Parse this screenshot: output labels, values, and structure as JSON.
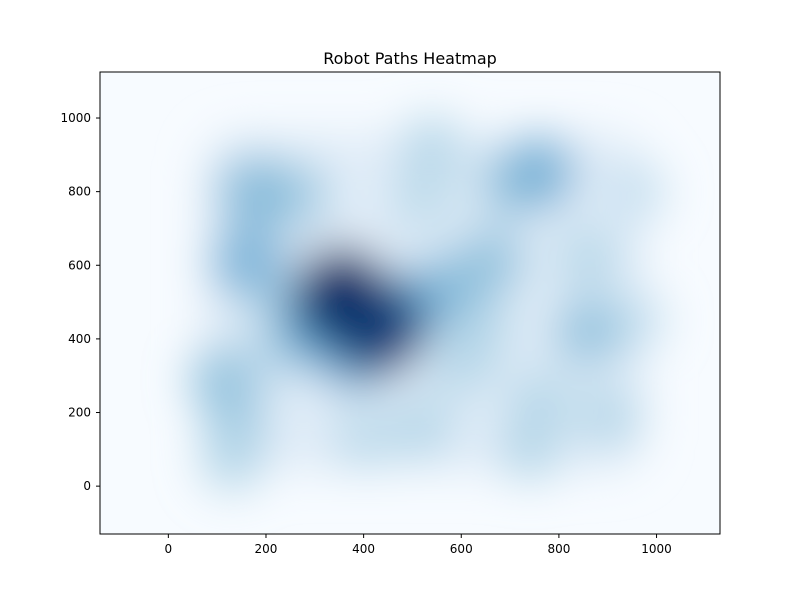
{
  "chart_data": {
    "type": "heatmap",
    "subtype": "kde-density",
    "title": "Robot Paths Heatmap",
    "xlabel": "",
    "ylabel": "",
    "xlim": [
      -140,
      1130
    ],
    "ylim": [
      -130,
      1125
    ],
    "xticks": [
      0,
      200,
      400,
      600,
      800,
      1000
    ],
    "yticks": [
      0,
      200,
      400,
      600,
      800,
      1000
    ],
    "colormap": "Blues",
    "colors": {
      "background": "#f7fbff",
      "low": "#deebf7",
      "mid": "#9ecae1",
      "high": "#4292c6",
      "peak": "#08306b",
      "axis": "#000000"
    },
    "density_hotspots": [
      {
        "x": 355,
        "y": 520,
        "intensity": 1.0
      },
      {
        "x": 430,
        "y": 425,
        "intensity": 0.95
      },
      {
        "x": 310,
        "y": 450,
        "intensity": 0.7
      },
      {
        "x": 470,
        "y": 470,
        "intensity": 0.65
      },
      {
        "x": 380,
        "y": 360,
        "intensity": 0.6
      },
      {
        "x": 560,
        "y": 530,
        "intensity": 0.5
      },
      {
        "x": 660,
        "y": 610,
        "intensity": 0.45
      },
      {
        "x": 165,
        "y": 610,
        "intensity": 0.55
      },
      {
        "x": 175,
        "y": 800,
        "intensity": 0.5
      },
      {
        "x": 260,
        "y": 790,
        "intensity": 0.4
      },
      {
        "x": 760,
        "y": 850,
        "intensity": 0.55
      },
      {
        "x": 700,
        "y": 820,
        "intensity": 0.4
      },
      {
        "x": 860,
        "y": 420,
        "intensity": 0.45
      },
      {
        "x": 115,
        "y": 290,
        "intensity": 0.45
      },
      {
        "x": 140,
        "y": 180,
        "intensity": 0.35
      },
      {
        "x": 130,
        "y": 70,
        "intensity": 0.3
      },
      {
        "x": 520,
        "y": 160,
        "intensity": 0.3
      },
      {
        "x": 400,
        "y": 130,
        "intensity": 0.25
      },
      {
        "x": 760,
        "y": 230,
        "intensity": 0.3
      },
      {
        "x": 740,
        "y": 100,
        "intensity": 0.3
      },
      {
        "x": 900,
        "y": 190,
        "intensity": 0.3
      },
      {
        "x": 540,
        "y": 920,
        "intensity": 0.3
      },
      {
        "x": 520,
        "y": 780,
        "intensity": 0.25
      },
      {
        "x": 860,
        "y": 620,
        "intensity": 0.3
      },
      {
        "x": 250,
        "y": 380,
        "intensity": 0.35
      },
      {
        "x": 230,
        "y": 480,
        "intensity": 0.3
      },
      {
        "x": 600,
        "y": 330,
        "intensity": 0.3
      },
      {
        "x": 640,
        "y": 430,
        "intensity": 0.3
      },
      {
        "x": 960,
        "y": 800,
        "intensity": 0.2
      },
      {
        "x": 960,
        "y": 450,
        "intensity": 0.2
      }
    ]
  }
}
